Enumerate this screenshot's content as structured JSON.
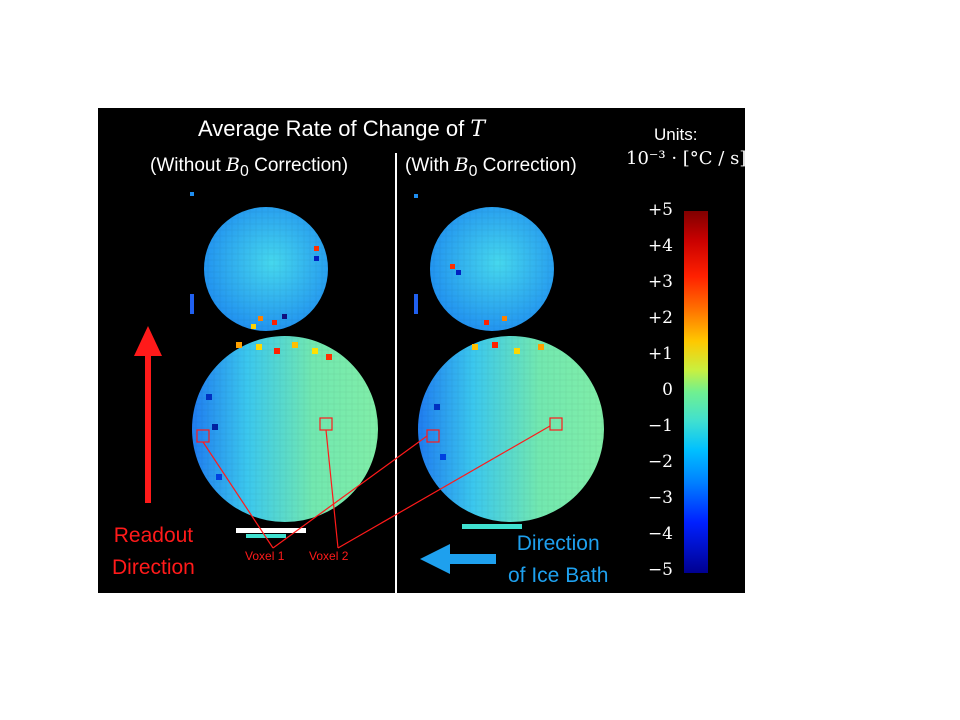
{
  "figure": {
    "title_prefix": "Average Rate of Change of ",
    "title_var": "T",
    "left_panel": {
      "open": "(Without ",
      "b": "B",
      "sub": "0",
      "close": " Correction)"
    },
    "right_panel": {
      "open": "(With ",
      "b": "B",
      "sub": "0",
      "close": " Correction)"
    },
    "units_label": "Units:",
    "units_formula": "10⁻³ · [°C / s]",
    "colorbar_ticks": [
      "+5",
      "+4",
      "+3",
      "+2",
      "+1",
      "0",
      "−1",
      "−2",
      "−3",
      "−4",
      "−5"
    ],
    "readout_line1": "Readout",
    "readout_line2": "Direction",
    "icebath_line1": "Direction",
    "icebath_line2": "of Ice Bath",
    "voxel1_label": "Voxel 1",
    "voxel2_label": "Voxel 2"
  },
  "colors": {
    "background": "#000000",
    "annotation_red": "#ff1a1a",
    "ice_bath_blue": "#1ea0ee",
    "colormap": "jet"
  }
}
